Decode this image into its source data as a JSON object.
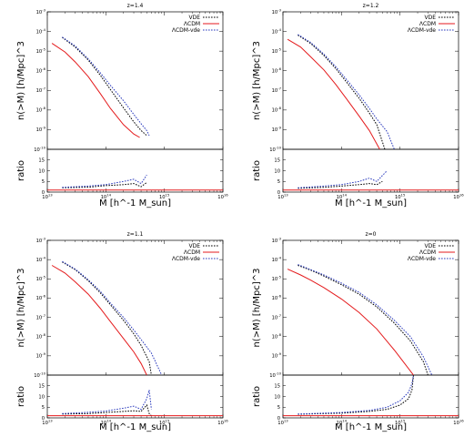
{
  "chart_data": [
    {
      "type": "line",
      "title": "z=1.4",
      "xlabel": "M [h^-1 M_sun]",
      "ylabel": "n(>M) [h/Mpc]^3",
      "ratio_ylabel": "ratio",
      "xscale": "log",
      "yscale": "log",
      "xlim": [
        10000000000000.0,
        1e+16
      ],
      "ylim": [
        1e-10,
        0.001
      ],
      "ratio_ylim": [
        0,
        20
      ],
      "x_tick_labels": [
        "10",
        "10",
        "10",
        "10"
      ],
      "x_tick_exponents": [
        "13",
        "14",
        "15",
        "16"
      ],
      "y_tick_labels": [
        "10",
        "10",
        "10",
        "10",
        "10",
        "10",
        "10",
        "10"
      ],
      "y_tick_exponents": [
        "-10",
        "-9",
        "-8",
        "-7",
        "-6",
        "-5",
        "-4",
        "-3"
      ],
      "ratio_tick_labels": [
        "0",
        "5",
        "10",
        "15"
      ],
      "legend_position": "top-right",
      "grid": false,
      "series": [
        {
          "name": "VDE",
          "color": "#000000",
          "dash": "dotted",
          "x": [
            18000000000000.0,
            30000000000000.0,
            50000000000000.0,
            80000000000000.0,
            120000000000000.0,
            200000000000000.0,
            300000000000000.0,
            400000000000000.0,
            500000000000000.0
          ],
          "y": [
            5e-05,
            1.6e-05,
            3.5e-06,
            6e-07,
            1.1e-07,
            1.3e-08,
            2.5e-09,
            9e-10,
            5e-10
          ]
        },
        {
          "name": "ΛCDM",
          "color": "#e41a1c",
          "dash": "solid",
          "x": [
            12000000000000.0,
            20000000000000.0,
            30000000000000.0,
            50000000000000.0,
            80000000000000.0,
            120000000000000.0,
            200000000000000.0,
            300000000000000.0,
            380000000000000.0
          ],
          "y": [
            2.5e-05,
            9e-06,
            2.8e-06,
            5e-07,
            7e-08,
            1.2e-08,
            1.8e-09,
            6e-10,
            4e-10
          ]
        },
        {
          "name": "ΛCDM-vde",
          "color": "#2b3bbd",
          "dash": "dotted",
          "x": [
            18000000000000.0,
            30000000000000.0,
            50000000000000.0,
            80000000000000.0,
            120000000000000.0,
            200000000000000.0,
            300000000000000.0,
            400000000000000.0,
            500000000000000.0,
            550000000000000.0
          ],
          "y": [
            5.2e-05,
            1.8e-05,
            4e-06,
            8e-07,
            1.8e-07,
            3e-08,
            6e-09,
            2e-09,
            9e-10,
            5e-10
          ]
        }
      ],
      "ratio_series": [
        {
          "name": "VDE",
          "x": [
            18000000000000.0,
            50000000000000.0,
            100000000000000.0,
            200000000000000.0,
            300000000000000.0,
            400000000000000.0,
            500000000000000.0
          ],
          "y": [
            2,
            2.3,
            3,
            3.5,
            4,
            2.5,
            4.5
          ]
        },
        {
          "name": "ΛCDM",
          "x": [
            10000000000000.0,
            1e+16
          ],
          "y": [
            1,
            1
          ]
        },
        {
          "name": "ΛCDM-vde",
          "x": [
            18000000000000.0,
            50000000000000.0,
            100000000000000.0,
            200000000000000.0,
            300000000000000.0,
            400000000000000.0,
            500000000000000.0
          ],
          "y": [
            2.2,
            2.8,
            3.5,
            5,
            6,
            4,
            8
          ]
        }
      ]
    },
    {
      "type": "line",
      "title": "z=1.2",
      "xlabel": "M [h^-1 M_sun]",
      "ylabel": "n(>M) [h/Mpc]^3",
      "ratio_ylabel": "ratio",
      "xscale": "log",
      "yscale": "log",
      "xlim": [
        10000000000000.0,
        1e+16
      ],
      "ylim": [
        1e-10,
        0.001
      ],
      "ratio_ylim": [
        0,
        20
      ],
      "x_tick_labels": [
        "10",
        "10",
        "10",
        "10"
      ],
      "x_tick_exponents": [
        "13",
        "14",
        "15",
        "16"
      ],
      "y_tick_labels": [
        "10",
        "10",
        "10",
        "10",
        "10",
        "10",
        "10",
        "10"
      ],
      "y_tick_exponents": [
        "-10",
        "-9",
        "-8",
        "-7",
        "-6",
        "-5",
        "-4",
        "-3"
      ],
      "ratio_tick_labels": [
        "0",
        "5",
        "10",
        "15"
      ],
      "legend_position": "top-right",
      "grid": false,
      "series": [
        {
          "name": "VDE",
          "color": "#000000",
          "dash": "dotted",
          "x": [
            18000000000000.0,
            30000000000000.0,
            50000000000000.0,
            80000000000000.0,
            120000000000000.0,
            200000000000000.0,
            300000000000000.0,
            400000000000000.0,
            550000000000000.0
          ],
          "y": [
            6.5e-05,
            2.4e-05,
            6e-06,
            1.3e-06,
            2.8e-07,
            4e-08,
            7e-09,
            1.8e-09,
            1e-10
          ]
        },
        {
          "name": "ΛCDM",
          "color": "#e41a1c",
          "dash": "solid",
          "x": [
            12000000000000.0,
            20000000000000.0,
            30000000000000.0,
            50000000000000.0,
            80000000000000.0,
            120000000000000.0,
            200000000000000.0,
            300000000000000.0,
            450000000000000.0
          ],
          "y": [
            4e-05,
            1.6e-05,
            5e-06,
            1.1e-06,
            2e-07,
            4e-08,
            5e-09,
            9e-10,
            1e-10
          ]
        },
        {
          "name": "ΛCDM-vde",
          "color": "#2b3bbd",
          "dash": "dotted",
          "x": [
            18000000000000.0,
            30000000000000.0,
            50000000000000.0,
            80000000000000.0,
            120000000000000.0,
            200000000000000.0,
            300000000000000.0,
            400000000000000.0,
            600000000000000.0,
            800000000000000.0
          ],
          "y": [
            7e-05,
            2.7e-05,
            7e-06,
            1.6e-06,
            3.8e-07,
            6e-08,
            1.2e-08,
            3.5e-09,
            8e-10,
            1e-10
          ]
        }
      ],
      "ratio_series": [
        {
          "name": "VDE",
          "x": [
            18000000000000.0,
            50000000000000.0,
            100000000000000.0,
            200000000000000.0,
            300000000000000.0,
            400000000000000.0,
            500000000000000.0
          ],
          "y": [
            1.8,
            2.2,
            2.8,
            3.5,
            4,
            3.5,
            5
          ]
        },
        {
          "name": "ΛCDM",
          "x": [
            10000000000000.0,
            1e+16
          ],
          "y": [
            1,
            1
          ]
        },
        {
          "name": "ΛCDM-vde",
          "x": [
            18000000000000.0,
            50000000000000.0,
            100000000000000.0,
            200000000000000.0,
            300000000000000.0,
            400000000000000.0,
            600000000000000.0
          ],
          "y": [
            2,
            2.8,
            3.5,
            5,
            6.5,
            5,
            10
          ]
        }
      ]
    },
    {
      "type": "line",
      "title": "z=1.1",
      "xlabel": "M [h^-1 M_sun]",
      "ylabel": "n(>M) [h/Mpc]^3",
      "ratio_ylabel": "ratio",
      "xscale": "log",
      "yscale": "log",
      "xlim": [
        10000000000000.0,
        1e+16
      ],
      "ylim": [
        1e-10,
        0.001
      ],
      "ratio_ylim": [
        0,
        20
      ],
      "x_tick_labels": [
        "10",
        "10",
        "10",
        "10"
      ],
      "x_tick_exponents": [
        "13",
        "14",
        "15",
        "16"
      ],
      "y_tick_labels": [
        "10",
        "10",
        "10",
        "10",
        "10",
        "10",
        "10",
        "10"
      ],
      "y_tick_exponents": [
        "-10",
        "-9",
        "-8",
        "-7",
        "-6",
        "-5",
        "-4",
        "-3"
      ],
      "ratio_tick_labels": [
        "0",
        "5",
        "10",
        "15"
      ],
      "legend_position": "top-right",
      "grid": false,
      "series": [
        {
          "name": "VDE",
          "color": "#000000",
          "dash": "dotted",
          "x": [
            18000000000000.0,
            30000000000000.0,
            50000000000000.0,
            80000000000000.0,
            120000000000000.0,
            200000000000000.0,
            300000000000000.0,
            400000000000000.0,
            550000000000000.0,
            600000000000000.0
          ],
          "y": [
            7.5e-05,
            3e-05,
            8e-06,
            1.9e-06,
            4.5e-07,
            7e-08,
            1.4e-08,
            3.5e-09,
            5e-10,
            1e-10
          ]
        },
        {
          "name": "ΛCDM",
          "color": "#e41a1c",
          "dash": "solid",
          "x": [
            12000000000000.0,
            20000000000000.0,
            30000000000000.0,
            50000000000000.0,
            80000000000000.0,
            120000000000000.0,
            200000000000000.0,
            300000000000000.0,
            400000000000000.0,
            500000000000000.0
          ],
          "y": [
            5e-05,
            2e-05,
            7e-06,
            1.6e-06,
            3e-07,
            6e-08,
            8e-09,
            1.6e-09,
            4e-10,
            1e-10
          ]
        },
        {
          "name": "ΛCDM-vde",
          "color": "#2b3bbd",
          "dash": "dotted",
          "x": [
            18000000000000.0,
            30000000000000.0,
            50000000000000.0,
            80000000000000.0,
            120000000000000.0,
            200000000000000.0,
            300000000000000.0,
            400000000000000.0,
            600000000000000.0,
            900000000000000.0
          ],
          "y": [
            8e-05,
            3.2e-05,
            9e-06,
            2.3e-06,
            5.5e-07,
            1e-07,
            2.2e-08,
            7e-09,
            1.4e-09,
            1e-10
          ]
        }
      ],
      "ratio_series": [
        {
          "name": "VDE",
          "x": [
            18000000000000.0,
            50000000000000.0,
            100000000000000.0,
            200000000000000.0,
            300000000000000.0,
            400000000000000.0,
            500000000000000.0,
            550000000000000.0,
            600000000000000.0
          ],
          "y": [
            1.8,
            2,
            2.5,
            3,
            3.3,
            3,
            6,
            2,
            1
          ]
        },
        {
          "name": "ΛCDM",
          "x": [
            10000000000000.0,
            1e+16
          ],
          "y": [
            1,
            1
          ]
        },
        {
          "name": "ΛCDM-vde",
          "x": [
            18000000000000.0,
            50000000000000.0,
            100000000000000.0,
            200000000000000.0,
            300000000000000.0,
            400000000000000.0,
            500000000000000.0,
            550000000000000.0,
            600000000000000.0
          ],
          "y": [
            2,
            2.6,
            3.2,
            4.5,
            5.5,
            4,
            9,
            13,
            4
          ]
        }
      ]
    },
    {
      "type": "line",
      "title": "z=0",
      "xlabel": "M [h^-1 M_sun]",
      "ylabel": "n(>M) [h/Mpc]^3",
      "ratio_ylabel": "ratio",
      "xscale": "log",
      "yscale": "log",
      "xlim": [
        10000000000000.0,
        1e+16
      ],
      "ylim": [
        1e-10,
        0.001
      ],
      "ratio_ylim": [
        0,
        20
      ],
      "x_tick_labels": [
        "10",
        "10",
        "10",
        "10"
      ],
      "x_tick_exponents": [
        "13",
        "14",
        "15",
        "16"
      ],
      "y_tick_labels": [
        "10",
        "10",
        "10",
        "10",
        "10",
        "10",
        "10",
        "10"
      ],
      "y_tick_exponents": [
        "-10",
        "-9",
        "-8",
        "-7",
        "-6",
        "-5",
        "-4",
        "-3"
      ],
      "ratio_tick_labels": [
        "0",
        "5",
        "10",
        "15"
      ],
      "legend_position": "top-right",
      "grid": false,
      "series": [
        {
          "name": "VDE",
          "color": "#000000",
          "dash": "dotted",
          "x": [
            18000000000000.0,
            30000000000000.0,
            50000000000000.0,
            100000000000000.0,
            200000000000000.0,
            400000000000000.0,
            800000000000000.0,
            1500000000000000.0,
            2500000000000000.0,
            3000000000000000.0
          ],
          "y": [
            5e-05,
            2.8e-05,
            1.4e-05,
            5e-06,
            1.6e-06,
            3.5e-07,
            5e-08,
            6e-09,
            5e-10,
            1e-10
          ]
        },
        {
          "name": "ΛCDM",
          "color": "#e41a1c",
          "dash": "solid",
          "x": [
            12000000000000.0,
            20000000000000.0,
            30000000000000.0,
            50000000000000.0,
            100000000000000.0,
            200000000000000.0,
            400000000000000.0,
            800000000000000.0,
            1200000000000000.0,
            1700000000000000.0
          ],
          "y": [
            3.2e-05,
            1.6e-05,
            8.5e-06,
            3.5e-06,
            9e-07,
            1.8e-07,
            2.5e-08,
            2e-09,
            4e-10,
            1e-10
          ]
        },
        {
          "name": "ΛCDM-vde",
          "color": "#2b3bbd",
          "dash": "dotted",
          "x": [
            18000000000000.0,
            30000000000000.0,
            50000000000000.0,
            100000000000000.0,
            200000000000000.0,
            400000000000000.0,
            800000000000000.0,
            1500000000000000.0,
            2500000000000000.0,
            3500000000000000.0
          ],
          "y": [
            5.5e-05,
            3e-05,
            1.6e-05,
            6e-06,
            2e-06,
            4.5e-07,
            7e-08,
            1e-08,
            9e-10,
            1e-10
          ]
        }
      ],
      "ratio_series": [
        {
          "name": "VDE",
          "x": [
            18000000000000.0,
            100000000000000.0,
            300000000000000.0,
            600000000000000.0,
            1000000000000000.0,
            1400000000000000.0,
            1600000000000000.0,
            1700000000000000.0
          ],
          "y": [
            1.7,
            2.2,
            3,
            4,
            6,
            9,
            13,
            20
          ]
        },
        {
          "name": "ΛCDM",
          "x": [
            10000000000000.0,
            1e+16
          ],
          "y": [
            1,
            1
          ]
        },
        {
          "name": "ΛCDM-vde",
          "x": [
            18000000000000.0,
            100000000000000.0,
            300000000000000.0,
            600000000000000.0,
            1000000000000000.0,
            1400000000000000.0,
            1600000000000000.0,
            1700000000000000.0
          ],
          "y": [
            1.8,
            2.5,
            3.5,
            5,
            8,
            12,
            16,
            20
          ]
        }
      ]
    }
  ]
}
